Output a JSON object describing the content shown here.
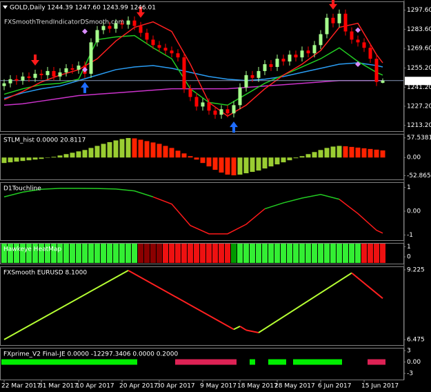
{
  "chart_data": [
    {
      "type": "candlestick",
      "title": "GOLD,Daily  1244.39 1247.60 1243.99 1246.01",
      "watermark": "FXSmoothTrendIndicatorDSmooth.com",
      "ylim": [
        1211,
        1302
      ],
      "yticks": [
        {
          "value": 1297.6,
          "label": "1297.60"
        },
        {
          "value": 1283.6,
          "label": "1283.60"
        },
        {
          "value": 1269.6,
          "label": "1269.60"
        },
        {
          "value": 1255.2,
          "label": "1255.20"
        },
        {
          "value": 1241.2,
          "label": "1241.20"
        },
        {
          "value": 1227.2,
          "label": "1227.20"
        },
        {
          "value": 1213.2,
          "label": "1213.20"
        }
      ],
      "up_color": "#a6ff8c",
      "down_color": "#ff0000",
      "price_line_color": "#8899bb",
      "open": [
        1242,
        1244,
        1247,
        1246,
        1249,
        1248,
        1251,
        1250,
        1253,
        1249,
        1252,
        1255,
        1254,
        1257,
        1251,
        1274,
        1283,
        1286,
        1284,
        1288,
        1287,
        1290,
        1286,
        1281,
        1276,
        1272,
        1270,
        1268,
        1266,
        1263,
        1240,
        1234,
        1227,
        1230,
        1224,
        1221,
        1225,
        1222,
        1228,
        1241,
        1250,
        1248,
        1253,
        1258,
        1256,
        1262,
        1260,
        1265,
        1263,
        1268,
        1266,
        1272,
        1280,
        1292,
        1288,
        1295,
        1282,
        1276,
        1274,
        1270,
        1262,
        1244.39
      ],
      "high": [
        1247,
        1250,
        1250,
        1252,
        1252,
        1254,
        1254,
        1256,
        1256,
        1255,
        1258,
        1258,
        1260,
        1260,
        1277,
        1286,
        1289,
        1289,
        1291,
        1291,
        1293,
        1293,
        1289,
        1284,
        1279,
        1275,
        1273,
        1271,
        1269,
        1266,
        1243,
        1237,
        1233,
        1233,
        1227,
        1228,
        1228,
        1231,
        1244,
        1253,
        1253,
        1256,
        1261,
        1261,
        1265,
        1265,
        1268,
        1268,
        1271,
        1271,
        1275,
        1283,
        1295,
        1295,
        1298,
        1298,
        1285,
        1279,
        1277,
        1273,
        1265,
        1247.6
      ],
      "low": [
        1239,
        1241,
        1243,
        1243,
        1245,
        1245,
        1247,
        1247,
        1246,
        1246,
        1249,
        1251,
        1251,
        1248,
        1248,
        1271,
        1280,
        1281,
        1281,
        1284,
        1284,
        1283,
        1278,
        1273,
        1269,
        1267,
        1265,
        1263,
        1260,
        1237,
        1231,
        1224,
        1224,
        1221,
        1218,
        1218,
        1219,
        1219,
        1225,
        1238,
        1245,
        1245,
        1250,
        1253,
        1253,
        1257,
        1257,
        1260,
        1260,
        1263,
        1263,
        1269,
        1277,
        1285,
        1285,
        1279,
        1273,
        1271,
        1267,
        1259,
        1242,
        1243.99
      ],
      "close": [
        1244,
        1247,
        1246,
        1249,
        1248,
        1251,
        1250,
        1253,
        1249,
        1252,
        1255,
        1254,
        1257,
        1251,
        1274,
        1283,
        1286,
        1284,
        1288,
        1287,
        1290,
        1286,
        1281,
        1276,
        1272,
        1270,
        1268,
        1266,
        1263,
        1240,
        1234,
        1227,
        1230,
        1224,
        1221,
        1225,
        1222,
        1228,
        1241,
        1250,
        1248,
        1253,
        1258,
        1256,
        1262,
        1260,
        1265,
        1263,
        1268,
        1266,
        1272,
        1280,
        1292,
        1288,
        1295,
        1282,
        1276,
        1274,
        1270,
        1262,
        1245,
        1246.01
      ],
      "line_x": [
        0,
        3,
        6,
        9,
        12,
        15,
        18,
        21,
        24,
        27,
        30,
        33,
        36,
        39,
        42,
        45,
        48,
        51,
        54,
        57,
        60,
        61
      ],
      "lines": [
        {
          "color": "#cc33cc",
          "values": [
            1228,
            1229,
            1231,
            1233,
            1235,
            1236,
            1237,
            1238,
            1239,
            1240,
            1240,
            1240,
            1240,
            1241,
            1242,
            1243,
            1244,
            1245,
            1246,
            1246,
            1246,
            1246
          ]
        },
        {
          "color": "#2a9df4",
          "values": [
            1233,
            1237,
            1240,
            1242,
            1246,
            1250,
            1254,
            1256,
            1257,
            1255,
            1252,
            1249,
            1247,
            1246,
            1247,
            1249,
            1252,
            1255,
            1258,
            1259,
            1257,
            1256
          ]
        },
        {
          "color": "#22cc22",
          "values": [
            1236,
            1240,
            1243,
            1244,
            1247,
            1276,
            1278,
            1279,
            1270,
            1262,
            1240,
            1230,
            1228,
            1236,
            1244,
            1250,
            1256,
            1262,
            1270,
            1260,
            1252,
            1250
          ]
        },
        {
          "color": "#ff2020",
          "values": [
            1232,
            1238,
            1245,
            1250,
            1254,
            1262,
            1275,
            1285,
            1289,
            1282,
            1258,
            1230,
            1220,
            1228,
            1240,
            1250,
            1258,
            1268,
            1285,
            1288,
            1265,
            1259
          ]
        }
      ],
      "sell_arrows": [
        5,
        22,
        53
      ],
      "sell_color": "#ff1a1a",
      "buy_arrows": [
        13,
        37
      ],
      "buy_color": "#1e6cff",
      "diamonds": {
        "color": "#d98cff",
        "x": [
          13,
          13,
          57,
          57
        ],
        "values": [
          1282,
          1254,
          1283,
          1258
        ]
      }
    },
    {
      "type": "histogram",
      "title": "STLM_hist 0.0000 20.8117",
      "ylim": [
        -56,
        61
      ],
      "yticks": [
        57.5381,
        {
          "value": 0,
          "label": "0.00"
        },
        -52.8655
      ],
      "up_color": "#9acd32",
      "down_color": "#ff2200",
      "values": [
        -16,
        -14,
        -12,
        -10,
        -8,
        -6,
        -4,
        -1,
        2,
        6,
        10,
        14,
        18,
        22,
        28,
        34,
        40,
        45,
        50,
        54,
        57,
        56,
        52,
        48,
        44,
        40,
        34,
        28,
        20,
        12,
        4,
        -6,
        -16,
        -26,
        -36,
        -44,
        -50,
        -52,
        -50,
        -46,
        -42,
        -38,
        -32,
        -26,
        -20,
        -14,
        -8,
        -2,
        4,
        10,
        16,
        22,
        28,
        32,
        34,
        33,
        31,
        29,
        27,
        25,
        23,
        20.8117
      ]
    },
    {
      "type": "line",
      "title": "D1Touchline",
      "ylim": [
        -1.1,
        1.1
      ],
      "yticks": [
        1,
        {
          "value": 0,
          "label": "0.00"
        },
        -1
      ],
      "x": [
        0,
        3,
        6,
        9,
        12,
        15,
        18,
        21,
        24,
        27,
        30,
        33,
        36,
        39,
        42,
        45,
        48,
        51,
        54,
        57,
        60,
        61
      ],
      "series": [
        {
          "color": "#22cc22",
          "values": [
            0.6,
            0.8,
            0.92,
            0.96,
            0.96,
            0.95,
            0.93,
            0.85,
            0.6,
            null,
            null,
            null,
            null,
            null,
            0.1,
            0.35,
            0.55,
            0.7,
            0.5,
            null,
            null,
            null
          ]
        },
        {
          "color": "#ff1a1a",
          "values": [
            null,
            null,
            null,
            null,
            null,
            null,
            null,
            null,
            0.6,
            0.3,
            -0.6,
            -0.95,
            -0.95,
            -0.55,
            0.1,
            null,
            null,
            null,
            0.5,
            -0.1,
            -0.8,
            -0.92
          ]
        }
      ]
    },
    {
      "type": "heatmap",
      "title": "Hawkeye HeatMap",
      "ylim": [
        -0.4,
        1.1
      ],
      "yticks": [
        1,
        0
      ],
      "segments": [
        {
          "from": 0,
          "to": 21,
          "color": "#33ee33"
        },
        {
          "from": 22,
          "to": 25,
          "color": "#8b0000"
        },
        {
          "from": 26,
          "to": 36,
          "color": "#ee1111"
        },
        {
          "from": 37,
          "to": 37,
          "color": "#009900"
        },
        {
          "from": 38,
          "to": 57,
          "color": "#33ee33"
        },
        {
          "from": 58,
          "to": 61,
          "color": "#ee1111"
        }
      ]
    },
    {
      "type": "zigzag",
      "title": "FXSmooth EURUSD 8.1000",
      "ylim": [
        6.37,
        9.25
      ],
      "yticks": [
        9.225,
        6.475
      ],
      "up_color": "#b5ff33",
      "down_color": "#ff2020",
      "x": [
        0,
        20,
        37,
        38,
        39,
        41,
        56,
        61
      ],
      "values": [
        6.48,
        9.2,
        6.88,
        7.0,
        6.85,
        6.75,
        9.1,
        8.1
      ]
    },
    {
      "type": "segments",
      "title": "FXprime_V2 Final-JE 0.0000 -12297.3406 0.0000 0.2000",
      "ylim": [
        -3.9,
        3
      ],
      "yticks": [
        3,
        {
          "value": 0,
          "label": "0.00"
        },
        -3
      ],
      "level": 0,
      "segments": [
        {
          "from": 0,
          "to": 21,
          "color": "#00ee00"
        },
        {
          "from": 28,
          "to": 37,
          "color": "#dd2255"
        },
        {
          "from": 40,
          "to": 40,
          "color": "#00ee00"
        },
        {
          "from": 43,
          "to": 45,
          "color": "#00ee00"
        },
        {
          "from": 47,
          "to": 54,
          "color": "#00ee00"
        },
        {
          "from": 59,
          "to": 61,
          "color": "#dd2255"
        }
      ]
    }
  ],
  "x_axis": {
    "xticks": [
      {
        "value": 0,
        "label": "22 Mar 2017"
      },
      {
        "value": 6,
        "label": "31 Mar 2017"
      },
      {
        "value": 12,
        "label": "10 Apr 2017"
      },
      {
        "value": 19,
        "label": "20 Apr 2017"
      },
      {
        "value": 25,
        "label": "30 Apr 2017"
      },
      {
        "value": 32,
        "label": "9 May 2017"
      },
      {
        "value": 38,
        "label": "18 May 2017"
      },
      {
        "value": 44,
        "label": "28 May 2017"
      },
      {
        "value": 51,
        "label": "6 Jun 2017"
      },
      {
        "value": 58,
        "label": "15 Jun 2017"
      }
    ]
  }
}
